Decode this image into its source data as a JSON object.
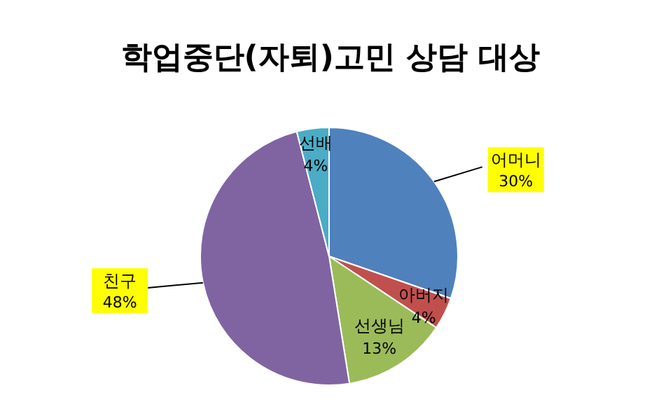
{
  "chart_data": {
    "type": "pie",
    "title": "학업중단(자퇴)고민 상담 대상",
    "categories": [
      "어머니",
      "아버지",
      "선생님",
      "친구",
      "선배"
    ],
    "values": [
      30,
      4,
      13,
      48,
      4
    ],
    "colors": [
      "#4f81bd",
      "#c0504d",
      "#9bbb59",
      "#8064a2",
      "#4bacc6"
    ],
    "value_labels": [
      "30%",
      "4%",
      "13%",
      "48%",
      "4%"
    ],
    "legend": false
  }
}
